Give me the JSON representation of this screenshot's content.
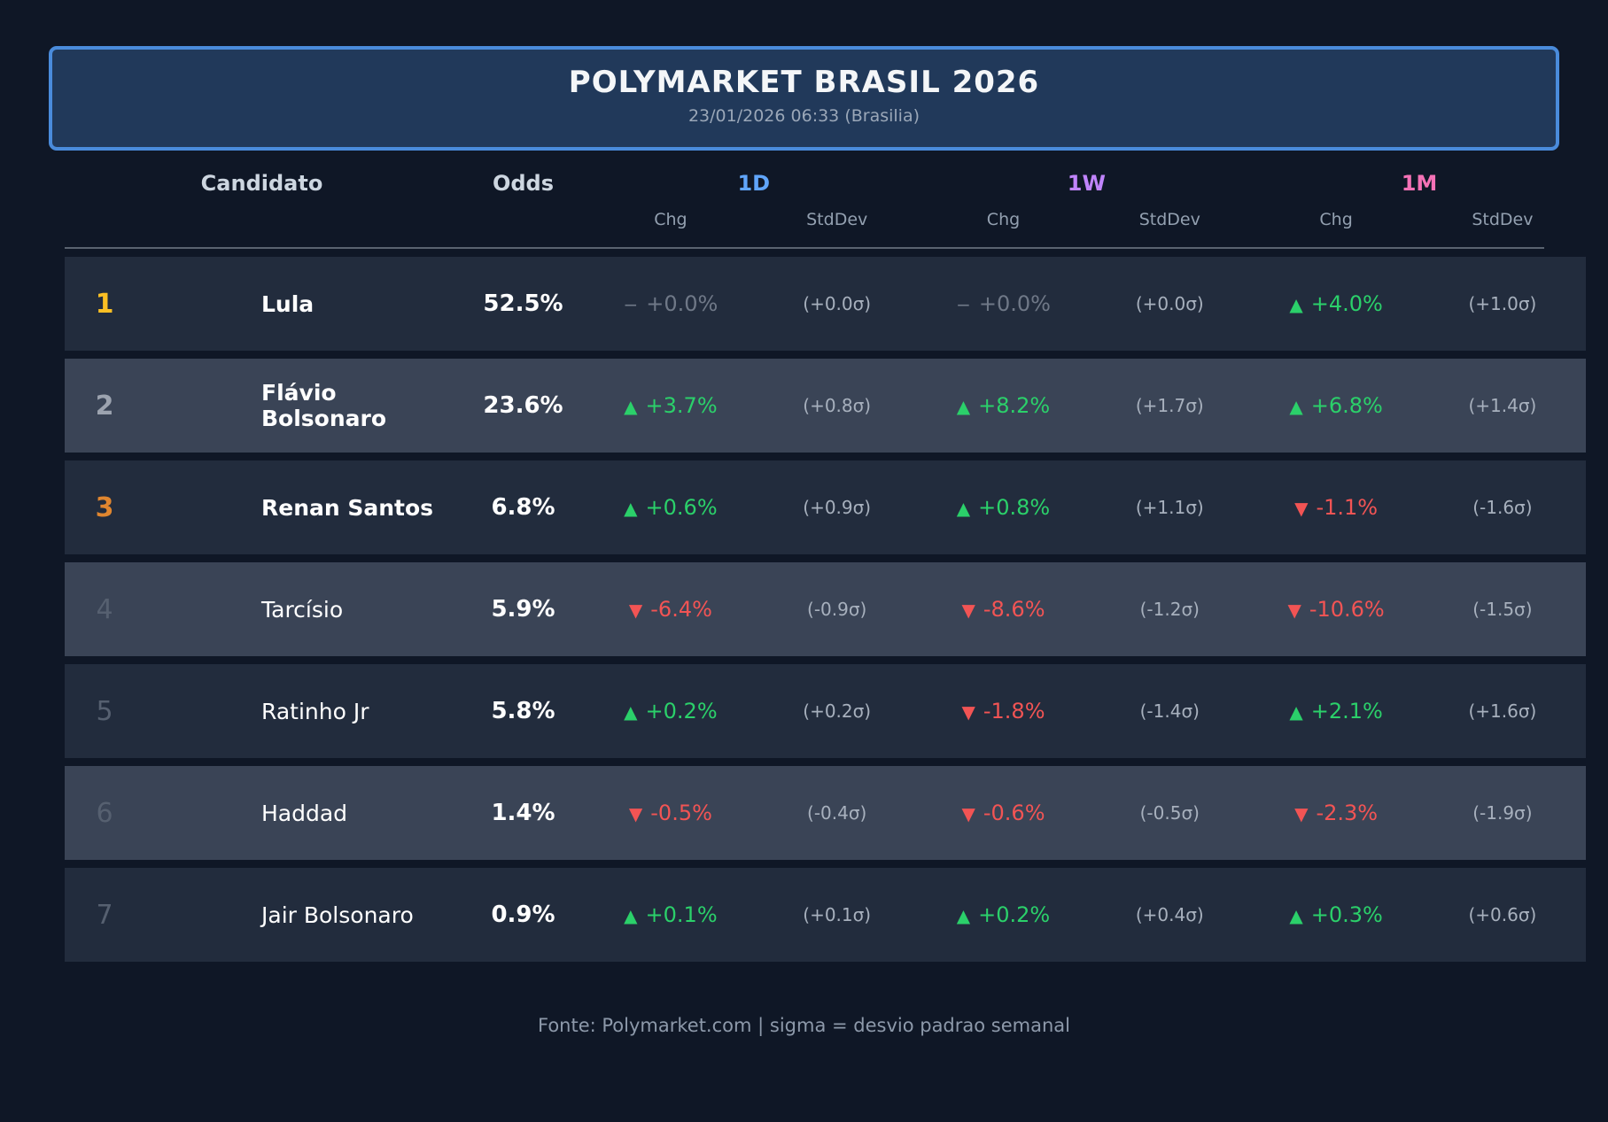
{
  "header": {
    "title": "POLYMARKET BRASIL 2026",
    "subtitle": "23/01/2026 06:33 (Brasilia)"
  },
  "table": {
    "col_candidato": "Candidato",
    "col_odds": "Odds",
    "sub_chg": "Chg",
    "sub_stddev": "StdDev",
    "groups": [
      {
        "label": "1D",
        "color": "#60a5fa"
      },
      {
        "label": "1W",
        "color": "#c084fc"
      },
      {
        "label": "1M",
        "color": "#f472b6"
      }
    ]
  },
  "chart_data": {
    "type": "table",
    "title": "POLYMARKET BRASIL 2026",
    "subtitle": "23/01/2026 06:33 (Brasilia)",
    "columns": [
      "Candidato",
      "Odds",
      "1D Chg",
      "1D StdDev",
      "1W Chg",
      "1W StdDev",
      "1M Chg",
      "1M StdDev"
    ],
    "rows": [
      {
        "rank": "1",
        "rank_color": "#fbbf24",
        "name": "Lula",
        "odds": "52.5%",
        "d1": {
          "arrow": "−",
          "chg": "+0.0%",
          "state": "flat",
          "stddev": "(+0.0σ)"
        },
        "w1": {
          "arrow": "−",
          "chg": "+0.0%",
          "state": "flat",
          "stddev": "(+0.0σ)"
        },
        "m1": {
          "arrow": "▲",
          "chg": "+4.0%",
          "state": "up",
          "stddev": "(+1.0σ)"
        }
      },
      {
        "rank": "2",
        "rank_color": "#9ca3af",
        "name": "Flávio Bolsonaro",
        "odds": "23.6%",
        "d1": {
          "arrow": "▲",
          "chg": "+3.7%",
          "state": "up",
          "stddev": "(+0.8σ)"
        },
        "w1": {
          "arrow": "▲",
          "chg": "+8.2%",
          "state": "up",
          "stddev": "(+1.7σ)"
        },
        "m1": {
          "arrow": "▲",
          "chg": "+6.8%",
          "state": "up",
          "stddev": "(+1.4σ)"
        }
      },
      {
        "rank": "3",
        "rank_color": "#e0862f",
        "name": "Renan Santos",
        "odds": "6.8%",
        "d1": {
          "arrow": "▲",
          "chg": "+0.6%",
          "state": "up",
          "stddev": "(+0.9σ)"
        },
        "w1": {
          "arrow": "▲",
          "chg": "+0.8%",
          "state": "up",
          "stddev": "(+1.1σ)"
        },
        "m1": {
          "arrow": "▼",
          "chg": "-1.1%",
          "state": "down",
          "stddev": "(-1.6σ)"
        }
      },
      {
        "rank": "4",
        "rank_color": "#566070",
        "name": "Tarcísio",
        "odds": "5.9%",
        "d1": {
          "arrow": "▼",
          "chg": "-6.4%",
          "state": "down",
          "stddev": "(-0.9σ)"
        },
        "w1": {
          "arrow": "▼",
          "chg": "-8.6%",
          "state": "down",
          "stddev": "(-1.2σ)"
        },
        "m1": {
          "arrow": "▼",
          "chg": "-10.6%",
          "state": "down",
          "stddev": "(-1.5σ)"
        }
      },
      {
        "rank": "5",
        "rank_color": "#566070",
        "name": "Ratinho Jr",
        "odds": "5.8%",
        "d1": {
          "arrow": "▲",
          "chg": "+0.2%",
          "state": "up",
          "stddev": "(+0.2σ)"
        },
        "w1": {
          "arrow": "▼",
          "chg": "-1.8%",
          "state": "down",
          "stddev": "(-1.4σ)"
        },
        "m1": {
          "arrow": "▲",
          "chg": "+2.1%",
          "state": "up",
          "stddev": "(+1.6σ)"
        }
      },
      {
        "rank": "6",
        "rank_color": "#566070",
        "name": "Haddad",
        "odds": "1.4%",
        "d1": {
          "arrow": "▼",
          "chg": "-0.5%",
          "state": "down",
          "stddev": "(-0.4σ)"
        },
        "w1": {
          "arrow": "▼",
          "chg": "-0.6%",
          "state": "down",
          "stddev": "(-0.5σ)"
        },
        "m1": {
          "arrow": "▼",
          "chg": "-2.3%",
          "state": "down",
          "stddev": "(-1.9σ)"
        }
      },
      {
        "rank": "7",
        "rank_color": "#566070",
        "name": "Jair Bolsonaro",
        "odds": "0.9%",
        "d1": {
          "arrow": "▲",
          "chg": "+0.1%",
          "state": "up",
          "stddev": "(+0.1σ)"
        },
        "w1": {
          "arrow": "▲",
          "chg": "+0.2%",
          "state": "up",
          "stddev": "(+0.4σ)"
        },
        "m1": {
          "arrow": "▲",
          "chg": "+0.3%",
          "state": "up",
          "stddev": "(+0.6σ)"
        }
      }
    ]
  },
  "footer": {
    "source": "Fonte: Polymarket.com | sigma = desvio padrao semanal"
  }
}
